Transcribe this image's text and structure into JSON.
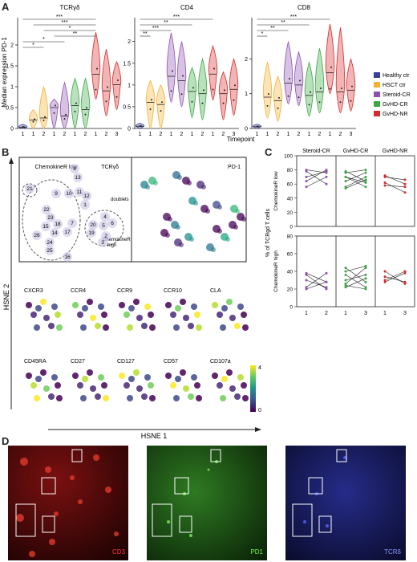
{
  "panels": {
    "A": "A",
    "B": "B",
    "C": "C",
    "D": "D"
  },
  "colors": {
    "healthy": "#3a3f9a",
    "hsct": "#f2b233",
    "steroid": "#8e4fb3",
    "gvhd_cr": "#3aa843",
    "gvhd_nr": "#d62a2a",
    "viridis_low": "#440154",
    "viridis_high": "#f3e51e"
  },
  "panelA": {
    "ylabel": "Median expression PD-1",
    "xlabel": "Timepoint",
    "ticks": [
      "1",
      "1",
      "2",
      "1",
      "2",
      "1",
      "2",
      "1",
      "2",
      "3"
    ],
    "legend": [
      {
        "label": "Healthy ctr",
        "color": "#3a3f9a"
      },
      {
        "label": "HSCT ctr",
        "color": "#f2b233"
      },
      {
        "label": "Steroid-CR",
        "color": "#8e4fb3"
      },
      {
        "label": "GvHD-CR",
        "color": "#3aa843"
      },
      {
        "label": "GvHD-NR",
        "color": "#d62a2a"
      }
    ],
    "subplots": [
      {
        "title": "TCRγδ",
        "yticks": [
          "0",
          "0.5",
          "1",
          "1.5",
          "2"
        ],
        "ymax": 2.5,
        "sig": [
          {
            "from": 0,
            "to": 7,
            "label": "***"
          },
          {
            "from": 1,
            "to": 7,
            "label": "***"
          },
          {
            "from": 2,
            "to": 7,
            "label": "*"
          },
          {
            "from": 3,
            "to": 7,
            "label": "**"
          },
          {
            "from": 0,
            "to": 4,
            "label": "*"
          },
          {
            "from": 0,
            "to": 2,
            "label": "*"
          }
        ],
        "medians": [
          0.03,
          0.2,
          0.25,
          0.5,
          0.3,
          0.55,
          0.45,
          1.3,
          0.9,
          1.05
        ],
        "maxes": [
          0.1,
          0.45,
          1.0,
          0.7,
          1.1,
          1.2,
          1.2,
          2.3,
          1.9,
          1.6
        ]
      },
      {
        "title": "CD4",
        "yticks": [
          "0",
          "0.5",
          "1",
          "1.5",
          "2"
        ],
        "ymax": 2.4,
        "sig": [
          {
            "from": 0,
            "to": 7,
            "label": "***"
          },
          {
            "from": 0,
            "to": 5,
            "label": "**"
          },
          {
            "from": 0,
            "to": 3,
            "label": "***"
          },
          {
            "from": 0,
            "to": 1,
            "label": "**"
          }
        ],
        "medians": [
          0.05,
          0.6,
          0.55,
          1.2,
          1.1,
          0.85,
          0.8,
          1.25,
          0.8,
          0.9
        ],
        "maxes": [
          0.12,
          1.1,
          1.0,
          2.2,
          2.0,
          1.4,
          1.6,
          1.9,
          1.3,
          1.6
        ]
      },
      {
        "title": "CD8",
        "yticks": [
          "0",
          "1",
          "2"
        ],
        "ymax": 3.0,
        "sig": [
          {
            "from": 0,
            "to": 7,
            "label": "***"
          },
          {
            "from": 0,
            "to": 5,
            "label": "**"
          },
          {
            "from": 0,
            "to": 3,
            "label": "**"
          },
          {
            "from": 0,
            "to": 1,
            "label": "*"
          }
        ],
        "medians": [
          0.05,
          0.9,
          0.8,
          1.3,
          1.25,
          0.95,
          1.05,
          1.6,
          1.05,
          1.1
        ],
        "maxes": [
          0.12,
          1.9,
          1.5,
          2.5,
          2.2,
          1.9,
          2.3,
          3.0,
          2.9,
          2.0
        ]
      }
    ]
  },
  "panelB": {
    "tsne_title": "TCRγδ",
    "pd1_title": "PD-1",
    "chemo_low": "ChemokineR low",
    "chemo_high_1": "ChemokineR",
    "chemo_high_2": "high",
    "doublets": "doublets",
    "clusters": [
      "21",
      "8",
      "13",
      "9",
      "10",
      "11",
      "12",
      "1",
      "22",
      "23",
      "15",
      "18",
      "7",
      "14",
      "17",
      "4",
      "20",
      "5",
      "6",
      "19",
      "2",
      "3",
      "26",
      "24",
      "25",
      "16"
    ],
    "hsne2": "HSNE 2",
    "hsne1": "HSNE 1",
    "markers": [
      "CXCR3",
      "CCR4",
      "CCR9",
      "CCR10",
      "CLA",
      "CD45RA",
      "CD27",
      "CD127",
      "CD57",
      "CD107a"
    ],
    "colorbar_max": "4",
    "colorbar_min": "0"
  },
  "panelC": {
    "columns": [
      "Steroid-CR",
      "GvHD-CR",
      "GvHD-NR"
    ],
    "ylabel": "% of TCRgd T cells",
    "top_label": "ChemokineR low",
    "bottom_label": "ChemokineR high",
    "top_yticks": [
      "0",
      "20",
      "40",
      "60",
      "80",
      "100"
    ],
    "bottom_yticks": [
      "0",
      "20",
      "40",
      "60",
      "80"
    ],
    "xticks": [
      [
        "1",
        "2"
      ],
      [
        "1",
        "3"
      ],
      [
        "1",
        "3"
      ]
    ],
    "top_pairs": [
      [
        [
          64,
          80
        ],
        [
          78,
          60
        ],
        [
          70,
          78
        ],
        [
          56,
          70
        ],
        [
          80,
          76
        ]
      ],
      [
        [
          70,
          56
        ],
        [
          78,
          64
        ],
        [
          64,
          76
        ],
        [
          56,
          70
        ],
        [
          70,
          62
        ],
        [
          54,
          66
        ],
        [
          76,
          80
        ]
      ],
      [
        [
          72,
          60
        ],
        [
          62,
          48
        ],
        [
          70,
          66
        ],
        [
          58,
          56
        ]
      ]
    ],
    "bottom_pairs": [
      [
        [
          36,
          20
        ],
        [
          22,
          38
        ],
        [
          30,
          22
        ],
        [
          38,
          28
        ],
        [
          20,
          28
        ]
      ],
      [
        [
          26,
          44
        ],
        [
          44,
          28
        ],
        [
          36,
          22
        ],
        [
          22,
          32
        ],
        [
          30,
          36
        ],
        [
          40,
          46
        ],
        [
          24,
          20
        ]
      ],
      [
        [
          28,
          38
        ],
        [
          34,
          28
        ],
        [
          40,
          26
        ],
        [
          30,
          40
        ]
      ]
    ]
  },
  "panelD": {
    "labels": [
      "CD3",
      "PD1",
      "TCRδ"
    ]
  }
}
